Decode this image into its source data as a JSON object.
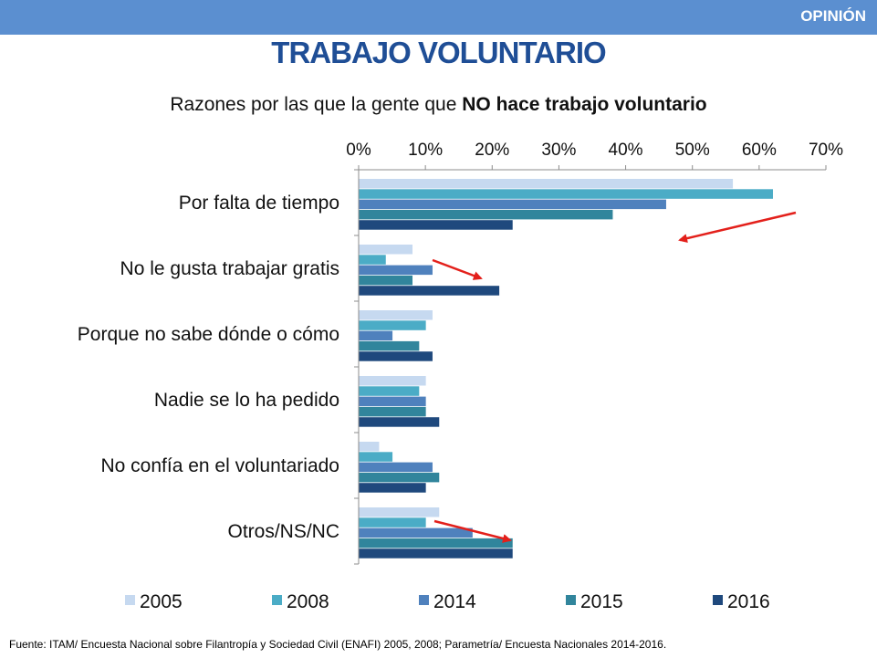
{
  "header": {
    "section_label": "OPINIÓN",
    "title": "TRABAJO VOLUNTARIO"
  },
  "chart_data": {
    "type": "bar",
    "orientation": "horizontal",
    "title_prefix": "Razones por las que la gente que ",
    "title_bold": "NO hace trabajo voluntario",
    "categories": [
      "Por falta de tiempo",
      "No le gusta trabajar gratis",
      "Porque no sabe dónde o cómo",
      "Nadie se lo ha pedido",
      "No confía en el voluntariado",
      "Otros/NS/NC"
    ],
    "series": [
      {
        "name": "2005",
        "color": "#c6d9f0",
        "values": [
          56,
          8,
          11,
          10,
          3,
          12
        ]
      },
      {
        "name": "2008",
        "color": "#4bacc6",
        "values": [
          62,
          4,
          10,
          9,
          5,
          10
        ]
      },
      {
        "name": "2014",
        "color": "#4f81bd",
        "values": [
          46,
          11,
          5,
          10,
          11,
          17
        ]
      },
      {
        "name": "2015",
        "color": "#31859c",
        "values": [
          38,
          8,
          9,
          10,
          12,
          23
        ]
      },
      {
        "name": "2016",
        "color": "#1f497d",
        "values": [
          23,
          21,
          11,
          12,
          10,
          23
        ]
      }
    ],
    "xlim": [
      0,
      70
    ],
    "ticks": [
      "0%",
      "10%",
      "20%",
      "30%",
      "40%",
      "50%",
      "60%",
      "70%"
    ],
    "tick_values": [
      0,
      10,
      20,
      30,
      40,
      50,
      60,
      70
    ],
    "legend_position": "bottom",
    "annotation_color": "#e3201b"
  },
  "source": "Fuente: ITAM/ Encuesta Nacional sobre Filantropía y Sociedad Civil (ENAFI) 2005, 2008; Parametría/ Encuesta Nacionales 2014-2016."
}
